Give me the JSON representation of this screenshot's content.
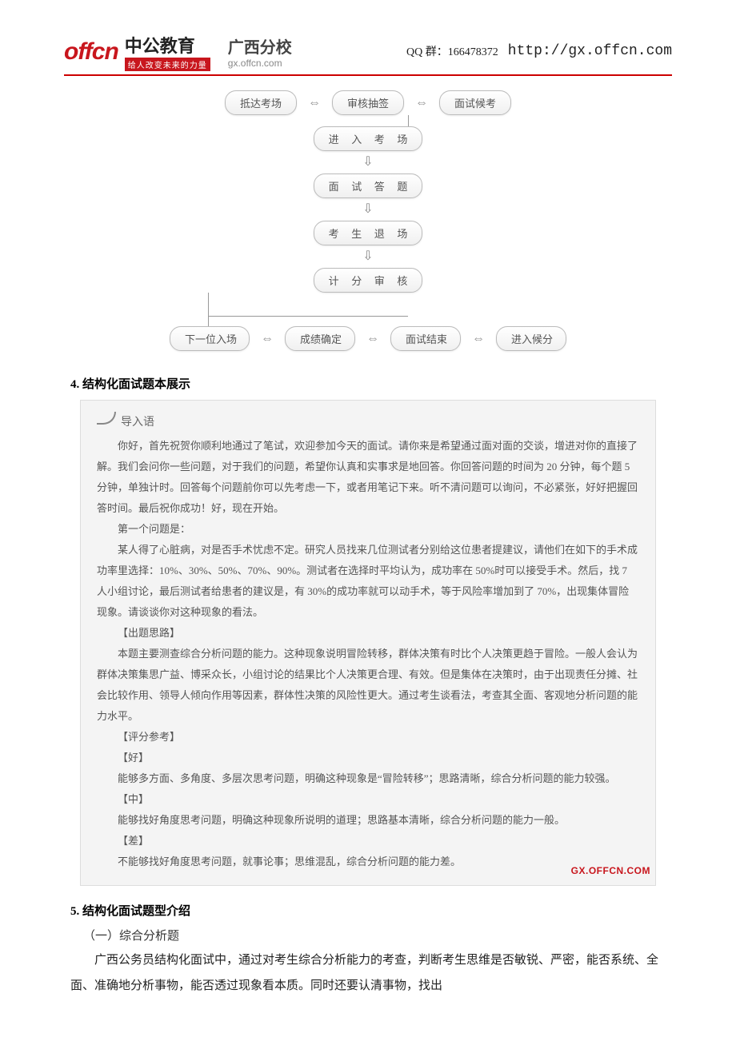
{
  "header": {
    "logo_latin": "offcn",
    "logo_cn": "中公教育",
    "logo_slogan": "给人改变未来的力量",
    "branch": "广西分校",
    "branch_url": "gx.offcn.com",
    "qq": "QQ 群：166478372",
    "site_url": "http://gx.offcn.com"
  },
  "flowchart": {
    "nodes": {
      "n1": "抵达考场",
      "n2": "审核抽签",
      "n3": "面试候考",
      "n4": "进 入 考 场",
      "n5": "面 试 答 题",
      "n6": "考 生 退 场",
      "n7": "计 分 审 核",
      "n8": "下一位入场",
      "n9": "成绩确定",
      "n10": "面试结束",
      "n11": "进入候分"
    },
    "arrows": {
      "h": "⇔",
      "v": "⇩"
    },
    "colors": {
      "node_bg_top": "#ffffff",
      "node_bg_bottom": "#f0f0f0",
      "node_border": "#bbbbbb",
      "node_text": "#555555",
      "arrow": "#888888"
    }
  },
  "section4": {
    "title": "4. 结构化面试题本展示",
    "lead": "导入语",
    "intro": "你好，首先祝贺你顺利地通过了笔试，欢迎参加今天的面试。请你来是希望通过面对面的交谈，增进对你的直接了解。我们会问你一些问题，对于我们的问题，希望你认真和实事求是地回答。你回答问题的时间为 20 分钟，每个题 5 分钟，单独计时。回答每个问题前你可以先考虑一下，或者用笔记下来。听不清问题可以询问，不必紧张，好好把握回答时间。最后祝你成功！好，现在开始。",
    "q1_head": "第一个问题是：",
    "q1_body": "某人得了心脏病，对是否手术忧虑不定。研究人员找来几位测试者分别给这位患者提建议，请他们在如下的手术成功率里选择：10%、30%、50%、70%、90%。测试者在选择时平均认为，成功率在 50%时可以接受手术。然后，找 7 人小组讨论，最后测试者给患者的建议是，有 30%的成功率就可以动手术，等于风险率增加到了 70%，出现集体冒险现象。请谈谈你对这种现象的看法。",
    "idea_h": "【出题思路】",
    "idea": "本题主要测查综合分析问题的能力。这种现象说明冒险转移，群体决策有时比个人决策更趋于冒险。一般人会认为群体决策集思广益、博采众长，小组讨论的结果比个人决策更合理、有效。但是集体在决策时，由于出现责任分摊、社会比较作用、领导人倾向作用等因素，群体性决策的风险性更大。通过考生谈看法，考查其全面、客观地分析问题的能力水平。",
    "score_h": "【评分参考】",
    "good_h": "【好】",
    "good": "能够多方面、多角度、多层次思考问题，明确这种现象是“冒险转移”；思路清晰，综合分析问题的能力较强。",
    "mid_h": "【中】",
    "mid": "能够找好角度思考问题，明确这种现象所说明的道理；思路基本清晰，综合分析问题的能力一般。",
    "bad_h": "【差】",
    "bad": "不能够找好角度思考问题，就事论事；思维混乱，综合分析问题的能力差。",
    "watermark": "GX.OFFCN.COM"
  },
  "section5": {
    "title": "5. 结构化面试题型介绍",
    "sub1": "（一）综合分析题",
    "p1": "广西公务员结构化面试中，通过对考生综合分析能力的考查，判断考生思维是否敏锐、严密，能否系统、全面、准确地分析事物，能否透过现象看本质。同时还要认清事物，找出"
  }
}
